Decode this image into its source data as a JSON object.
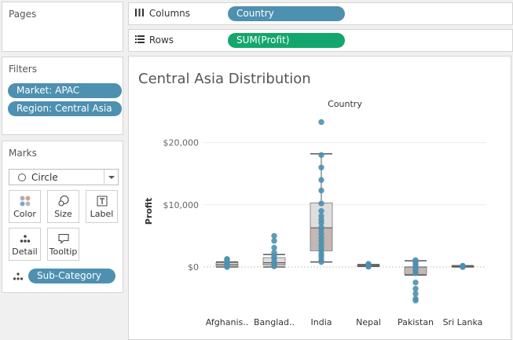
{
  "pages": {
    "title": "Pages"
  },
  "filters": {
    "title": "Filters",
    "items": [
      "Market: APAC",
      "Region: Central Asia"
    ]
  },
  "marks": {
    "title": "Marks",
    "mark_type": "Circle",
    "buttons": {
      "color": "Color",
      "size": "Size",
      "label": "Label",
      "detail": "Detail",
      "tooltip": "Tooltip"
    },
    "detail_pill": "Sub-Category"
  },
  "shelves": {
    "columns": {
      "label": "Columns",
      "pill": "Country"
    },
    "rows": {
      "label": "Rows",
      "pill": "SUM(Profit)"
    }
  },
  "view": {
    "title": "Central Asia Distribution"
  },
  "colors": {
    "pill_blue": "#4e90b0",
    "pill_green": "#13a66d",
    "dot": "#4e90b0"
  },
  "chart_data": {
    "type": "scatter",
    "overlay": "box-plot",
    "title": "Central Asia Distribution",
    "column_header": "Country",
    "ylabel": "Profit",
    "ylim": [
      -6500,
      25000
    ],
    "yticks": [
      0,
      10000,
      20000
    ],
    "ytick_labels": [
      "$0",
      "$10,000",
      "$20,000"
    ],
    "categories": [
      "Afghanis..",
      "Banglad..",
      "India",
      "Nepal",
      "Pakistan",
      "Sri Lanka"
    ],
    "series": [
      {
        "values": [
          [
            1300,
            1100,
            800,
            600,
            400,
            200,
            100,
            0
          ],
          [
            5000,
            4200,
            3100,
            2300,
            1700,
            1400,
            900,
            600,
            300,
            100
          ],
          [
            23300,
            18000,
            16000,
            14000,
            12300,
            10200,
            9000,
            8200,
            7600,
            7100,
            6400,
            5900,
            5300,
            4700,
            4200,
            3600,
            3100,
            2600,
            2100,
            1700,
            1200,
            800
          ],
          [
            500,
            400,
            300,
            200,
            150,
            100,
            50
          ],
          [
            1100,
            800,
            500,
            200,
            -100,
            -400,
            -700,
            -1000,
            -2500,
            -3500,
            -4300,
            -5100,
            -5400
          ],
          [
            200,
            100,
            50,
            0
          ]
        ]
      }
    ],
    "boxes": [
      {
        "min": 0,
        "q1": 50,
        "median": 400,
        "q3": 700,
        "max": 800
      },
      {
        "min": 0,
        "q1": 300,
        "median": 700,
        "q3": 1500,
        "max": 2000
      },
      {
        "min": 800,
        "q1": 2600,
        "median": 6300,
        "q3": 10300,
        "max": 18200
      },
      {
        "min": 100,
        "q1": 150,
        "median": 250,
        "q3": 350,
        "max": 400
      },
      {
        "min": -1300,
        "q1": -1200,
        "median": 0,
        "q3": 0,
        "max": 1000
      },
      {
        "min": 0,
        "q1": 50,
        "median": 100,
        "q3": 150,
        "max": 200
      }
    ],
    "grid": true
  }
}
